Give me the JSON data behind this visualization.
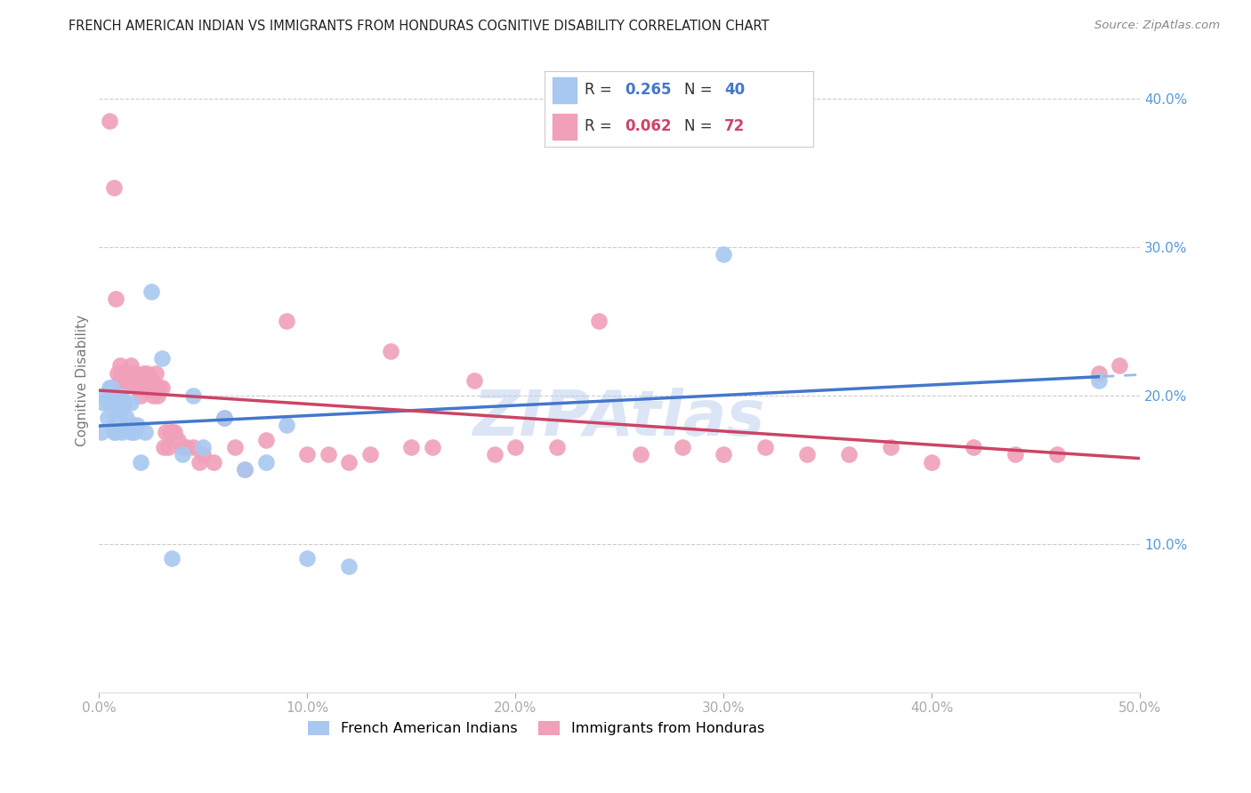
{
  "title": "FRENCH AMERICAN INDIAN VS IMMIGRANTS FROM HONDURAS COGNITIVE DISABILITY CORRELATION CHART",
  "source": "Source: ZipAtlas.com",
  "ylabel": "Cognitive Disability",
  "xlim": [
    0.0,
    0.5
  ],
  "ylim": [
    0.0,
    0.42
  ],
  "xticks": [
    0.0,
    0.1,
    0.2,
    0.3,
    0.4,
    0.5
  ],
  "yticks_right": [
    0.1,
    0.2,
    0.3,
    0.4
  ],
  "ytick_labels_right": [
    "10.0%",
    "20.0%",
    "30.0%",
    "40.0%"
  ],
  "xtick_labels": [
    "0.0%",
    "10.0%",
    "20.0%",
    "30.0%",
    "40.0%",
    "50.0%"
  ],
  "series1_label": "French American Indians",
  "series1_color": "#a8c8f0",
  "series1_R": "0.265",
  "series1_N": "40",
  "series2_label": "Immigrants from Honduras",
  "series2_color": "#f0a0b8",
  "series2_R": "0.062",
  "series2_N": "72",
  "trend1_color": "#4477cc",
  "trend2_color": "#cc4466",
  "trend1_dashed_color": "#99bbee",
  "watermark": "ZIPAtlas",
  "background_color": "#ffffff",
  "grid_color": "#cccccc",
  "right_axis_color": "#5599dd",
  "title_fontsize": 11,
  "series1_x": [
    0.001,
    0.002,
    0.003,
    0.004,
    0.005,
    0.005,
    0.006,
    0.006,
    0.007,
    0.007,
    0.008,
    0.008,
    0.009,
    0.01,
    0.01,
    0.011,
    0.012,
    0.013,
    0.014,
    0.015,
    0.015,
    0.016,
    0.017,
    0.018,
    0.02,
    0.022,
    0.025,
    0.03,
    0.035,
    0.04,
    0.045,
    0.05,
    0.06,
    0.07,
    0.08,
    0.09,
    0.1,
    0.12,
    0.3,
    0.48
  ],
  "series1_y": [
    0.175,
    0.195,
    0.2,
    0.185,
    0.195,
    0.205,
    0.195,
    0.205,
    0.175,
    0.195,
    0.185,
    0.175,
    0.195,
    0.19,
    0.2,
    0.175,
    0.195,
    0.185,
    0.18,
    0.175,
    0.195,
    0.18,
    0.175,
    0.18,
    0.155,
    0.175,
    0.27,
    0.225,
    0.09,
    0.16,
    0.2,
    0.165,
    0.185,
    0.15,
    0.155,
    0.18,
    0.09,
    0.085,
    0.295,
    0.21
  ],
  "series2_x": [
    0.005,
    0.007,
    0.008,
    0.009,
    0.01,
    0.01,
    0.011,
    0.012,
    0.013,
    0.014,
    0.015,
    0.015,
    0.016,
    0.017,
    0.018,
    0.018,
    0.019,
    0.02,
    0.02,
    0.021,
    0.022,
    0.023,
    0.024,
    0.025,
    0.026,
    0.027,
    0.028,
    0.029,
    0.03,
    0.031,
    0.032,
    0.033,
    0.034,
    0.035,
    0.036,
    0.038,
    0.04,
    0.042,
    0.045,
    0.048,
    0.05,
    0.055,
    0.06,
    0.065,
    0.07,
    0.08,
    0.09,
    0.1,
    0.11,
    0.12,
    0.13,
    0.14,
    0.15,
    0.16,
    0.18,
    0.19,
    0.2,
    0.22,
    0.24,
    0.26,
    0.28,
    0.3,
    0.32,
    0.34,
    0.36,
    0.38,
    0.4,
    0.42,
    0.44,
    0.46,
    0.48,
    0.49
  ],
  "series2_y": [
    0.385,
    0.34,
    0.265,
    0.215,
    0.21,
    0.22,
    0.215,
    0.205,
    0.215,
    0.21,
    0.215,
    0.22,
    0.21,
    0.215,
    0.205,
    0.205,
    0.21,
    0.21,
    0.2,
    0.215,
    0.205,
    0.215,
    0.205,
    0.21,
    0.2,
    0.215,
    0.2,
    0.205,
    0.205,
    0.165,
    0.175,
    0.165,
    0.175,
    0.175,
    0.175,
    0.17,
    0.165,
    0.165,
    0.165,
    0.155,
    0.16,
    0.155,
    0.185,
    0.165,
    0.15,
    0.17,
    0.25,
    0.16,
    0.16,
    0.155,
    0.16,
    0.23,
    0.165,
    0.165,
    0.21,
    0.16,
    0.165,
    0.165,
    0.25,
    0.16,
    0.165,
    0.16,
    0.165,
    0.16,
    0.16,
    0.165,
    0.155,
    0.165,
    0.16,
    0.16,
    0.215,
    0.22
  ]
}
